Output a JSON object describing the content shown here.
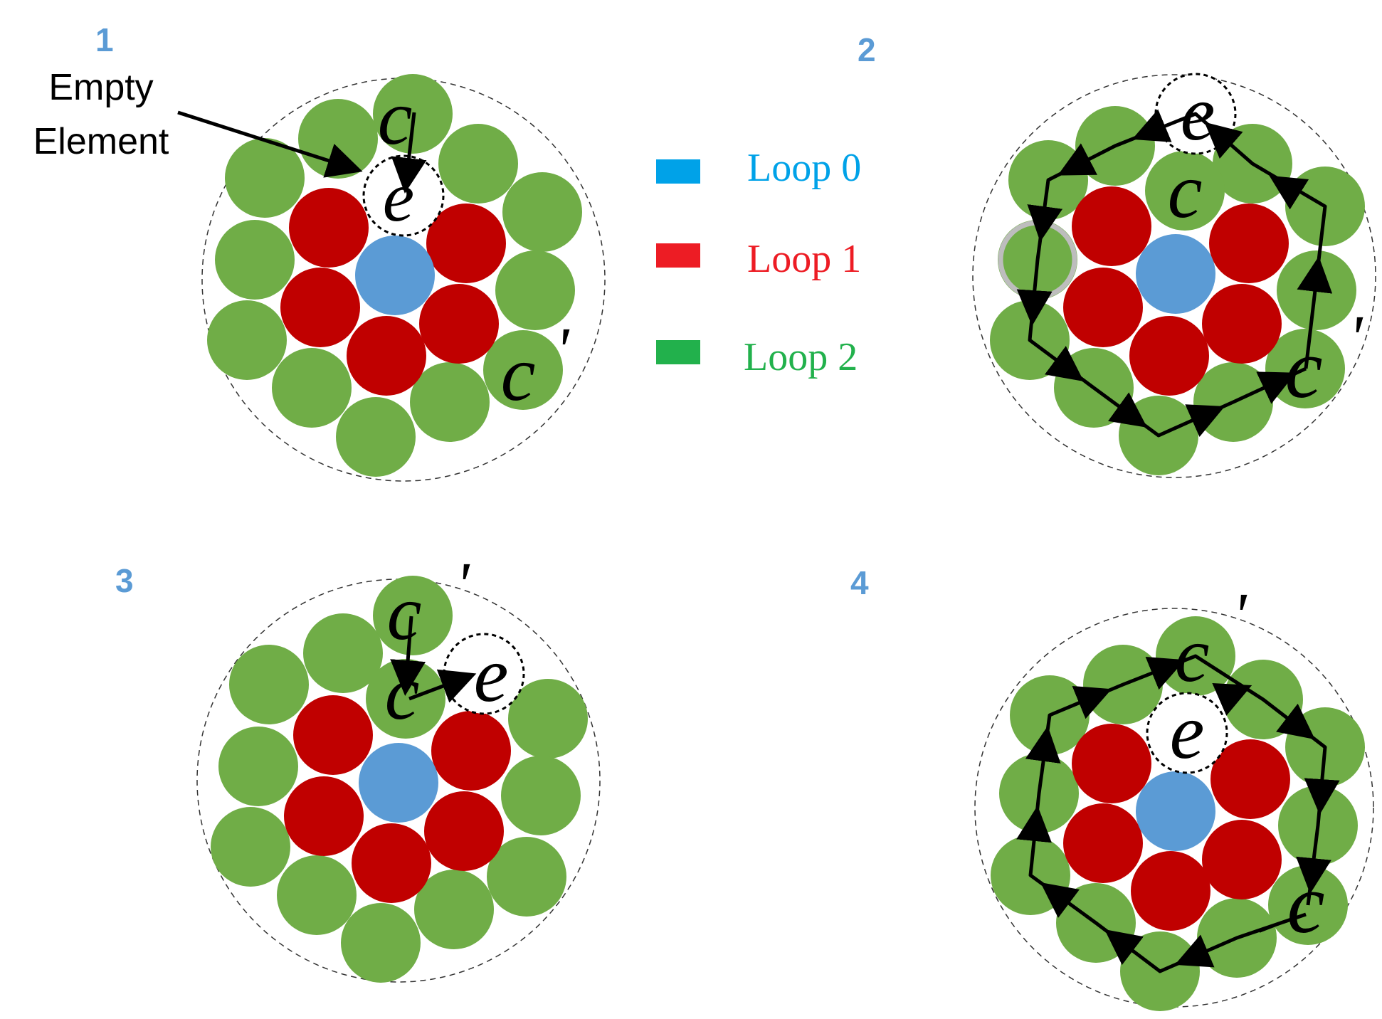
{
  "colors": {
    "loop0": "#5b9bd5",
    "loop1": "#c00000",
    "loop2": "#70ad47",
    "panel_number": "#5b9bd5",
    "legend_loop0_swatch": "#00a2e8",
    "legend_loop1_swatch": "#ed1c24",
    "legend_loop2_swatch": "#22b14c",
    "legend_loop0_text": "#00a2e8",
    "legend_loop1_text": "#ed1c24",
    "legend_loop2_text": "#22b14c"
  },
  "panels": [
    {
      "number": "1"
    },
    {
      "number": "2"
    },
    {
      "number": "3"
    },
    {
      "number": "4"
    }
  ],
  "annotation": {
    "line1": "Empty",
    "line2": "Element"
  },
  "symbols": {
    "current": "c",
    "empty": "e",
    "prime": "'"
  },
  "legend": [
    {
      "label": "Loop  0"
    },
    {
      "label": "Loop  1"
    },
    {
      "label": "Loop  2"
    }
  ]
}
